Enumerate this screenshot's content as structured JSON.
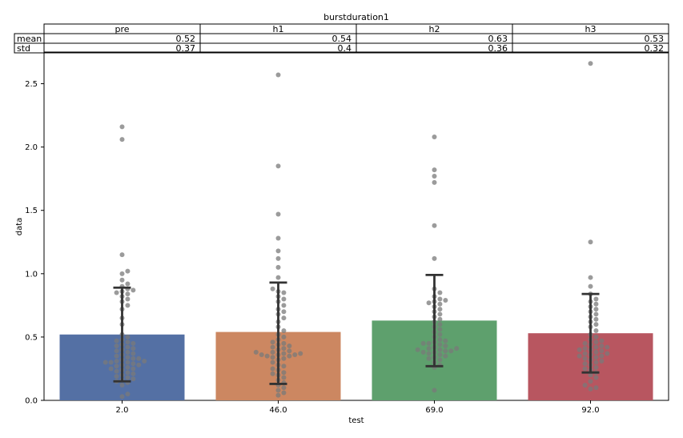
{
  "chart_data": {
    "type": "bar",
    "title": "burstduration1",
    "xlabel": "test",
    "ylabel": "data",
    "categories": [
      "2.0",
      "46.0",
      "69.0",
      "92.0"
    ],
    "ylim": [
      0,
      2.75
    ],
    "yticks": [
      "0.0",
      "0.5",
      "1.0",
      "1.5",
      "2.0",
      "2.5"
    ],
    "grid": false,
    "colors": [
      "#5470a4",
      "#cc8761",
      "#5ea06d",
      "#b85660"
    ],
    "point_color": "#7a7a7a",
    "bars": [
      {
        "value": 0.52,
        "err_low": 0.15,
        "err_high": 0.89,
        "points": [
          0.03,
          0.05,
          0.12,
          0.14,
          0.15,
          0.16,
          0.17,
          0.18,
          0.19,
          0.2,
          0.21,
          0.22,
          0.23,
          0.24,
          0.25,
          0.25,
          0.26,
          0.27,
          0.28,
          0.28,
          0.29,
          0.3,
          0.3,
          0.3,
          0.31,
          0.31,
          0.32,
          0.33,
          0.33,
          0.34,
          0.35,
          0.36,
          0.37,
          0.38,
          0.39,
          0.4,
          0.41,
          0.42,
          0.43,
          0.44,
          0.45,
          0.46,
          0.47,
          0.48,
          0.5,
          0.52,
          0.6,
          0.65,
          0.72,
          0.75,
          0.78,
          0.8,
          0.82,
          0.84,
          0.85,
          0.86,
          0.87,
          0.88,
          0.9,
          0.92,
          0.95,
          1.0,
          1.02,
          1.15,
          2.06,
          2.16
        ]
      },
      {
        "value": 0.54,
        "err_low": 0.13,
        "err_high": 0.93,
        "points": [
          0.04,
          0.06,
          0.08,
          0.1,
          0.12,
          0.14,
          0.16,
          0.18,
          0.2,
          0.21,
          0.22,
          0.24,
          0.25,
          0.27,
          0.28,
          0.3,
          0.32,
          0.33,
          0.34,
          0.35,
          0.35,
          0.36,
          0.36,
          0.36,
          0.37,
          0.37,
          0.38,
          0.38,
          0.39,
          0.4,
          0.41,
          0.42,
          0.43,
          0.44,
          0.45,
          0.46,
          0.48,
          0.5,
          0.52,
          0.55,
          0.58,
          0.62,
          0.65,
          0.68,
          0.7,
          0.72,
          0.75,
          0.78,
          0.8,
          0.82,
          0.85,
          0.86,
          0.88,
          0.97,
          1.05,
          1.12,
          1.18,
          1.28,
          1.47,
          1.85,
          2.57
        ]
      },
      {
        "value": 0.63,
        "err_low": 0.27,
        "err_high": 0.99,
        "points": [
          0.08,
          0.26,
          0.28,
          0.3,
          0.32,
          0.33,
          0.34,
          0.35,
          0.36,
          0.37,
          0.38,
          0.38,
          0.39,
          0.39,
          0.4,
          0.4,
          0.41,
          0.41,
          0.42,
          0.43,
          0.44,
          0.45,
          0.45,
          0.46,
          0.47,
          0.48,
          0.5,
          0.52,
          0.54,
          0.56,
          0.58,
          0.6,
          0.62,
          0.64,
          0.66,
          0.68,
          0.7,
          0.72,
          0.74,
          0.76,
          0.77,
          0.78,
          0.79,
          0.8,
          0.82,
          0.85,
          0.88,
          1.12,
          1.38,
          1.72,
          1.77,
          1.82,
          2.08
        ]
      },
      {
        "value": 0.53,
        "err_low": 0.22,
        "err_high": 0.84,
        "points": [
          0.09,
          0.1,
          0.12,
          0.15,
          0.18,
          0.2,
          0.22,
          0.24,
          0.25,
          0.26,
          0.28,
          0.29,
          0.3,
          0.31,
          0.32,
          0.33,
          0.34,
          0.35,
          0.35,
          0.36,
          0.37,
          0.37,
          0.38,
          0.39,
          0.4,
          0.4,
          0.41,
          0.42,
          0.42,
          0.43,
          0.44,
          0.45,
          0.46,
          0.47,
          0.48,
          0.5,
          0.52,
          0.55,
          0.58,
          0.6,
          0.62,
          0.64,
          0.66,
          0.68,
          0.7,
          0.72,
          0.74,
          0.76,
          0.78,
          0.8,
          0.84,
          0.9,
          0.97,
          1.25,
          2.66
        ]
      }
    ],
    "table": {
      "columns": [
        "pre",
        "h1",
        "h2",
        "h3"
      ],
      "rows": [
        {
          "label": "mean",
          "values": [
            "0.52",
            "0.54",
            "0.63",
            "0.53"
          ]
        },
        {
          "label": "std",
          "values": [
            "0.37",
            "0.4",
            "0.36",
            "0.32"
          ]
        }
      ]
    }
  }
}
